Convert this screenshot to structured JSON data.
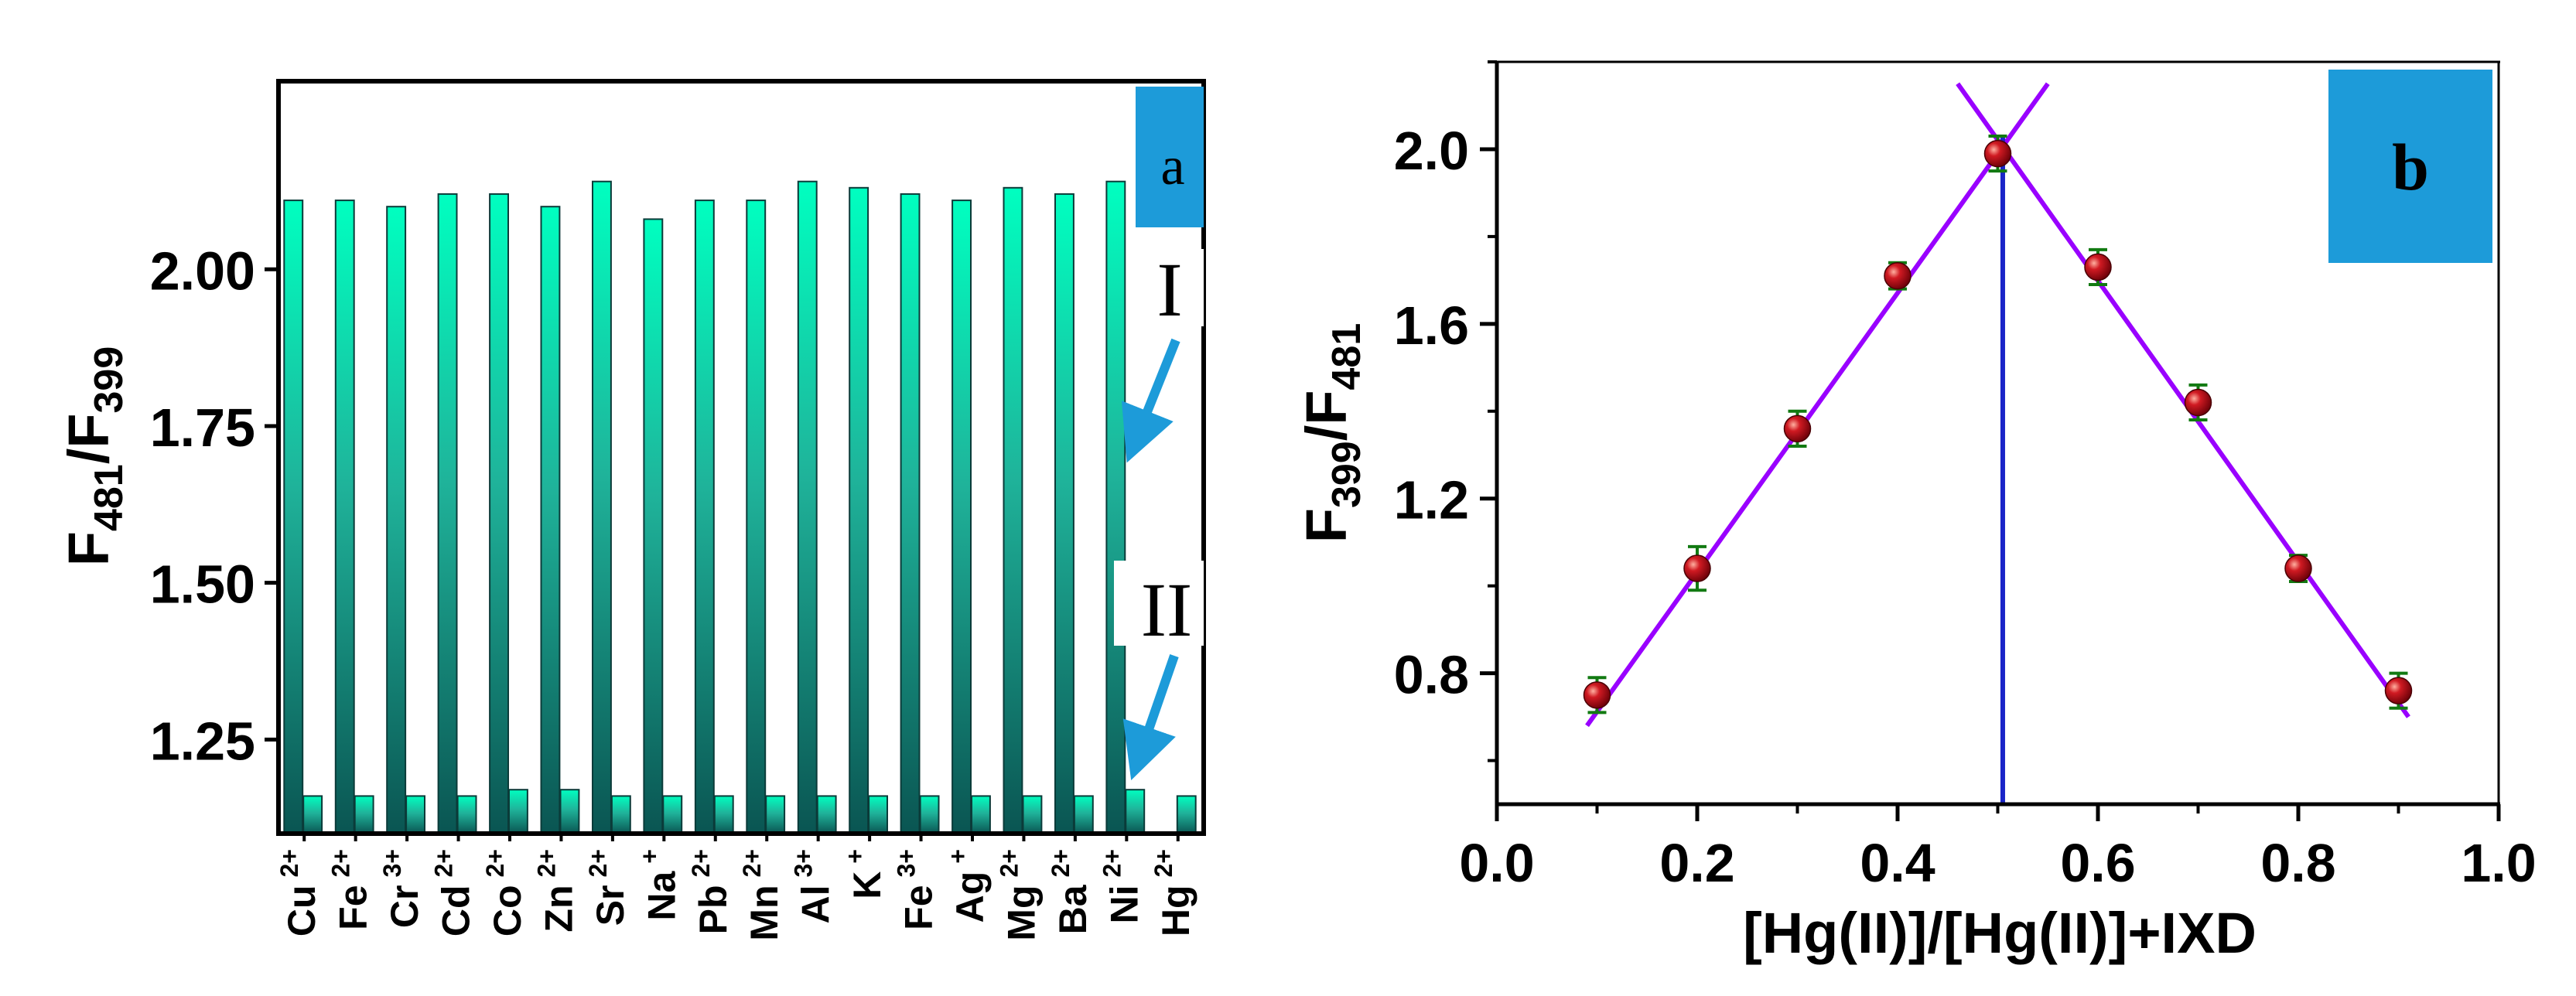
{
  "chart_data": [
    {
      "panel": "a",
      "type": "bar",
      "panel_label": "a",
      "ylabel": {
        "main": "F",
        "sub1": "481",
        "slash": "/F",
        "sub2": "399"
      },
      "ylim": [
        1.1,
        2.3
      ],
      "yticks": [
        "1.25",
        "1.50",
        "1.75",
        "2.00"
      ],
      "ytick_values": [
        1.25,
        1.5,
        1.75,
        2.0
      ],
      "categories": [
        {
          "el": "Cu",
          "ch": "2+"
        },
        {
          "el": "Fe",
          "ch": "2+"
        },
        {
          "el": "Cr",
          "ch": "3+"
        },
        {
          "el": "Cd",
          "ch": "2+"
        },
        {
          "el": "Co",
          "ch": "2+"
        },
        {
          "el": "Zn",
          "ch": "2+"
        },
        {
          "el": "Sr",
          "ch": "2+"
        },
        {
          "el": "Na",
          "ch": "+"
        },
        {
          "el": "Pb",
          "ch": "2+"
        },
        {
          "el": "Mn",
          "ch": "2+"
        },
        {
          "el": "Al",
          "ch": "3+"
        },
        {
          "el": "K",
          "ch": "+"
        },
        {
          "el": "Fe",
          "ch": "3+"
        },
        {
          "el": "Ag",
          "ch": "+"
        },
        {
          "el": "Mg",
          "ch": "2+"
        },
        {
          "el": "Ba",
          "ch": "2+"
        },
        {
          "el": "Ni",
          "ch": "2+"
        },
        {
          "el": "Hg",
          "ch": "2+"
        }
      ],
      "series": [
        {
          "name": "I",
          "values": [
            2.11,
            2.11,
            2.1,
            2.12,
            2.12,
            2.1,
            2.14,
            2.08,
            2.11,
            2.11,
            2.14,
            2.13,
            2.12,
            2.11,
            2.13,
            2.12,
            2.14,
            null
          ]
        },
        {
          "name": "II",
          "values": [
            1.16,
            1.16,
            1.16,
            1.16,
            1.17,
            1.17,
            1.16,
            1.16,
            1.16,
            1.16,
            1.16,
            1.16,
            1.16,
            1.16,
            1.16,
            1.16,
            1.17,
            1.16
          ]
        }
      ],
      "annotations": [
        "I",
        "II"
      ],
      "colors": {
        "bar_top": "#00ffc0",
        "bar_bottom": "#0a5552",
        "label_box": "#1d9bd9",
        "arrow": "#1d9bd9"
      }
    },
    {
      "panel": "b",
      "type": "scatter",
      "panel_label": "b",
      "ylabel": {
        "main": "F",
        "sub1": "399",
        "slash": "/F",
        "sub2": "481"
      },
      "xlabel": "[Hg(II)]/[Hg(II)]+IXD",
      "xlim": [
        0.0,
        1.0
      ],
      "ylim": [
        0.5,
        2.2
      ],
      "xticks": [
        "0.0",
        "0.2",
        "0.4",
        "0.6",
        "0.8",
        "1.0"
      ],
      "xtick_values": [
        0.0,
        0.2,
        0.4,
        0.6,
        0.8,
        1.0
      ],
      "yticks": [
        "0.8",
        "1.2",
        "1.6",
        "2.0"
      ],
      "ytick_values": [
        0.8,
        1.2,
        1.6,
        2.0
      ],
      "points": [
        {
          "x": 0.1,
          "y": 0.75,
          "err": 0.04
        },
        {
          "x": 0.2,
          "y": 1.04,
          "err": 0.05
        },
        {
          "x": 0.3,
          "y": 1.36,
          "err": 0.04
        },
        {
          "x": 0.4,
          "y": 1.71,
          "err": 0.03
        },
        {
          "x": 0.5,
          "y": 1.99,
          "err": 0.04
        },
        {
          "x": 0.6,
          "y": 1.73,
          "err": 0.04
        },
        {
          "x": 0.7,
          "y": 1.42,
          "err": 0.04
        },
        {
          "x": 0.8,
          "y": 1.04,
          "err": 0.03
        },
        {
          "x": 0.9,
          "y": 0.76,
          "err": 0.04
        }
      ],
      "fit_lines": [
        {
          "name": "rising",
          "x": [
            0.09,
            0.55
          ],
          "y": [
            0.68,
            2.15
          ]
        },
        {
          "name": "falling",
          "x": [
            0.46,
            0.91
          ],
          "y": [
            2.15,
            0.7
          ]
        }
      ],
      "vline_x": 0.505,
      "colors": {
        "fit": "#9900ff",
        "vline": "#1a25c8",
        "point": "#b8101b",
        "error": "#127a12",
        "label_box": "#1d9bd9"
      }
    }
  ]
}
